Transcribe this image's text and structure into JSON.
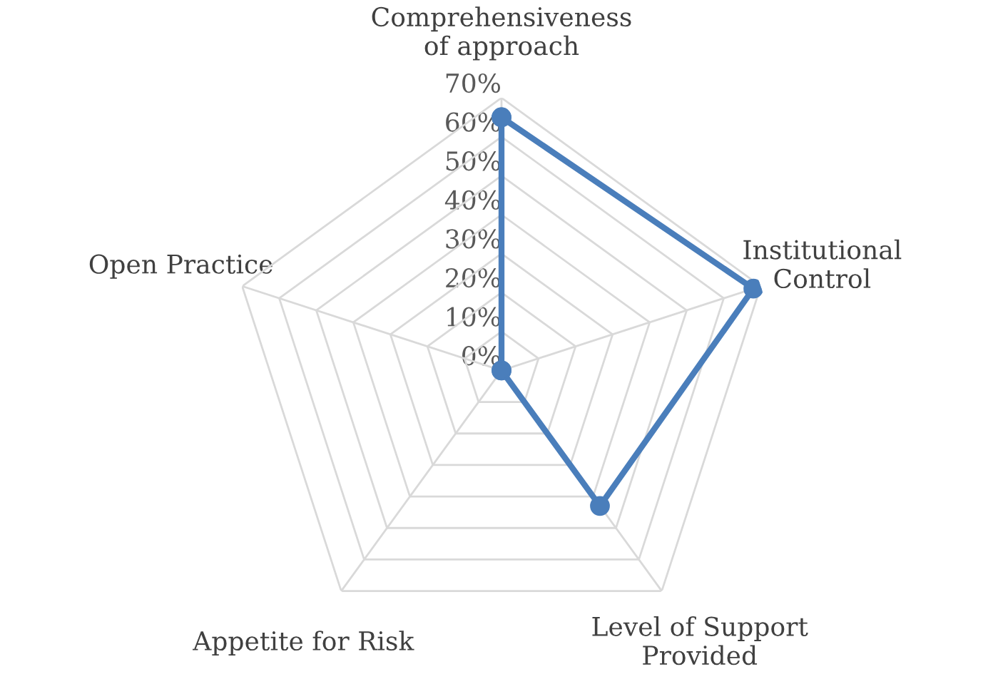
{
  "chart_data": {
    "type": "radar",
    "categories": [
      "Comprehensiveness\nof approach",
      "Institutional\nControl",
      "Level of Support\nProvided",
      "Appetite for Risk",
      "Open Practice"
    ],
    "series": [
      {
        "color": "#4a7ebb",
        "values": [
          65,
          68,
          43,
          0,
          0
        ]
      }
    ],
    "ylim": [
      0,
      70
    ],
    "yticks": [
      {
        "value": 0,
        "label": "0%"
      },
      {
        "value": 10,
        "label": "10%"
      },
      {
        "value": 20,
        "label": "20%"
      },
      {
        "value": 30,
        "label": "30%"
      },
      {
        "value": 40,
        "label": "40%"
      },
      {
        "value": 50,
        "label": "50%"
      },
      {
        "value": 60,
        "label": "60%"
      },
      {
        "value": 70,
        "label": "70%"
      }
    ],
    "grid": true,
    "marker": "circle",
    "line_style": "solid"
  }
}
